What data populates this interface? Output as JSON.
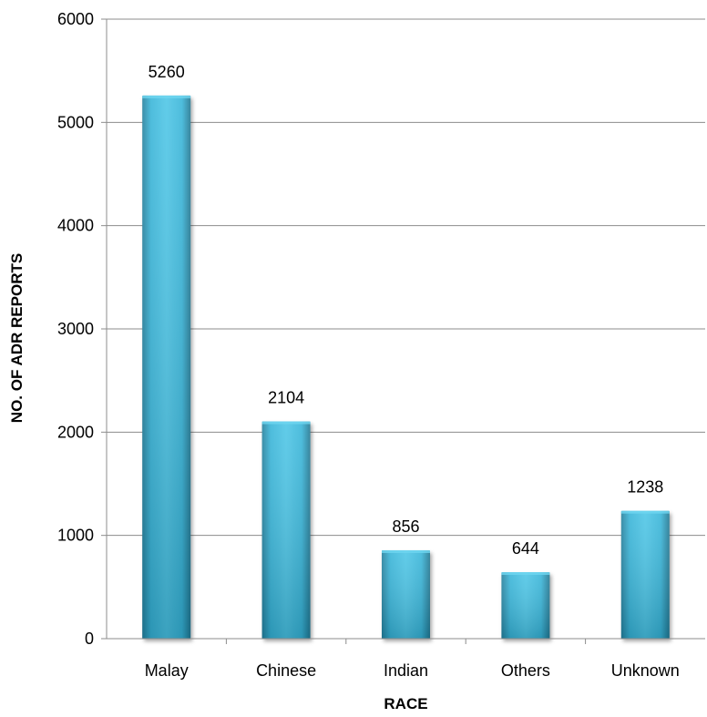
{
  "chart_data": {
    "type": "bar",
    "title": "",
    "xlabel": "RACE",
    "ylabel": "NO. OF ADR REPORTS",
    "categories": [
      "Malay",
      "Chinese",
      "Indian",
      "Others",
      "Unknown"
    ],
    "values": [
      5260,
      2104,
      856,
      644,
      1238
    ],
    "data_labels": [
      "5260",
      "2104",
      "856",
      "644",
      "1238"
    ],
    "ylim": [
      0,
      6000
    ],
    "yticks": [
      "0",
      "1000",
      "2000",
      "3000",
      "4000",
      "5000",
      "6000"
    ],
    "grid": true,
    "legend": "none",
    "colors": {
      "bar_light": "#4fc6e6",
      "bar_mid": "#33b2d6",
      "bar_dark": "#237f9c",
      "gridline": "#8c8c8c",
      "axis": "#8c8c8c"
    }
  }
}
